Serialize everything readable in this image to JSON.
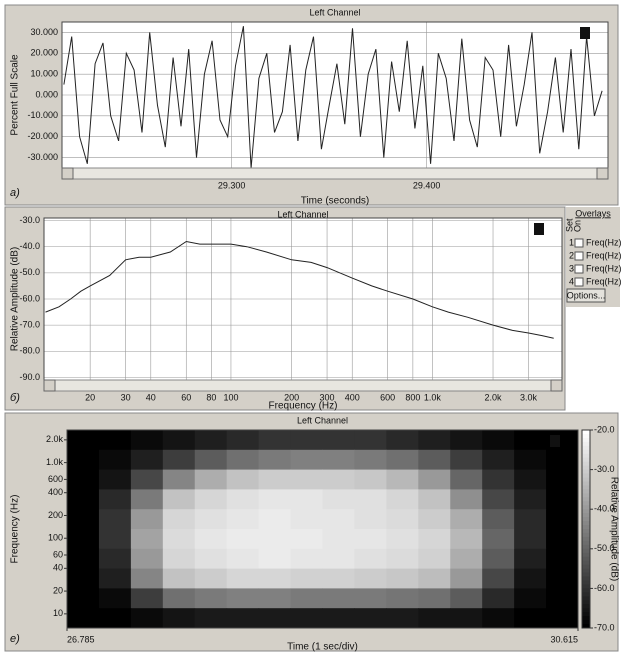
{
  "chart_data": [
    {
      "type": "line",
      "title": "Left Channel",
      "ylabel": "Percent Full Scale",
      "xlabel": "Time (seconds)",
      "panel_label": "a)",
      "color": "#222222",
      "grid": true,
      "xlim": [
        29.213,
        29.493
      ],
      "ylim": [
        -35,
        35
      ],
      "xticks": [
        {
          "value": 29.3,
          "label": "29.300"
        },
        {
          "value": 29.4,
          "label": "29.400"
        }
      ],
      "yticks": [
        {
          "value": 30,
          "label": "30.000"
        },
        {
          "value": 20,
          "label": "20.000"
        },
        {
          "value": 10,
          "label": "10.000"
        },
        {
          "value": 0,
          "label": "0.000"
        },
        {
          "value": -10,
          "label": "-10.000"
        },
        {
          "value": -20,
          "label": "-20.000"
        },
        {
          "value": -30,
          "label": "-30.000"
        }
      ],
      "x": [
        29.214,
        29.218,
        29.222,
        29.226,
        29.23,
        29.234,
        29.238,
        29.242,
        29.246,
        29.25,
        29.254,
        29.258,
        29.262,
        29.266,
        29.27,
        29.274,
        29.278,
        29.282,
        29.286,
        29.29,
        29.294,
        29.298,
        29.302,
        29.306,
        29.31,
        29.314,
        29.318,
        29.322,
        29.326,
        29.33,
        29.334,
        29.338,
        29.342,
        29.346,
        29.35,
        29.354,
        29.358,
        29.362,
        29.366,
        29.37,
        29.374,
        29.378,
        29.382,
        29.386,
        29.39,
        29.394,
        29.398,
        29.402,
        29.406,
        29.41,
        29.414,
        29.418,
        29.422,
        29.426,
        29.43,
        29.434,
        29.438,
        29.442,
        29.446,
        29.45,
        29.454,
        29.458,
        29.462,
        29.466,
        29.47,
        29.474,
        29.478,
        29.482,
        29.486,
        29.49
      ],
      "values": [
        5,
        28,
        -20,
        -33,
        15,
        25,
        -10,
        -22,
        20,
        12,
        -18,
        30,
        -5,
        -25,
        18,
        -15,
        22,
        -30,
        10,
        26,
        -12,
        -20,
        14,
        33,
        -35,
        8,
        20,
        -18,
        -8,
        24,
        -22,
        12,
        28,
        -26,
        -5,
        15,
        -14,
        32,
        -20,
        10,
        22,
        -30,
        16,
        -8,
        26,
        -16,
        14,
        -33,
        20,
        8,
        -22,
        27,
        -12,
        -25,
        18,
        12,
        -20,
        24,
        -15,
        5,
        30,
        -28,
        -8,
        18,
        -18,
        22,
        -26,
        28,
        -10,
        2
      ]
    },
    {
      "type": "line",
      "title": "Left Channel",
      "ylabel": "Relative Amplitude (dB)",
      "xlabel": "Frequency (Hz)",
      "panel_label": "б)",
      "color": "#222222",
      "grid": true,
      "xscale": "log",
      "xlim": [
        11.8,
        4400
      ],
      "ylim": [
        -91,
        -29
      ],
      "xticks": [
        20,
        30,
        40,
        60,
        80,
        100,
        200,
        300,
        400,
        600,
        800,
        {
          "value": 1000,
          "label": "1.0k"
        },
        {
          "value": 2000,
          "label": "2.0k"
        },
        {
          "value": 3000,
          "label": "3.0k"
        }
      ],
      "yticks": [
        {
          "value": -30,
          "label": "-30.0"
        },
        {
          "value": -40,
          "label": "-40.0"
        },
        {
          "value": -50,
          "label": "-50.0"
        },
        {
          "value": -60,
          "label": "-60.0"
        },
        {
          "value": -70,
          "label": "-70.0"
        },
        {
          "value": -80,
          "label": "-80.0"
        },
        {
          "value": -90,
          "label": "-90.0"
        }
      ],
      "x": [
        12,
        14,
        16,
        18,
        20,
        25,
        30,
        35,
        40,
        50,
        60,
        70,
        80,
        100,
        120,
        150,
        200,
        250,
        300,
        400,
        500,
        600,
        800,
        1000,
        1200,
        1500,
        2000,
        2500,
        3000,
        3500,
        4000
      ],
      "values": [
        -65,
        -63,
        -60,
        -57,
        -55,
        -51,
        -45,
        -44,
        -44,
        -42,
        -38,
        -39,
        -39,
        -39,
        -40,
        -42,
        -45,
        -46,
        -48,
        -52,
        -55,
        -57,
        -60,
        -63,
        -65,
        -67,
        -70,
        -72,
        -73,
        -74,
        -75
      ],
      "overlays": {
        "title": "Overlays",
        "headers": [
          "Set",
          "On"
        ],
        "rows": [
          {
            "set": "1",
            "label": "Freq(Hz)"
          },
          {
            "set": "2",
            "label": "Freq(Hz)"
          },
          {
            "set": "3",
            "label": "Freq(Hz)"
          },
          {
            "set": "4",
            "label": "Freq(Hz)"
          }
        ],
        "button": "Options..."
      }
    },
    {
      "type": "heatmap",
      "title": "Left Channel",
      "ylabel": "Frequency (Hz)",
      "xlabel": "Time (1 sec/div)",
      "panel_label": "e)",
      "colorbar_label": "Relative Amplitude (dB)",
      "yscale": "log",
      "xlim": [
        26.785,
        30.615
      ],
      "ylim": [
        6.5,
        2700
      ],
      "zlim": [
        -70,
        -20
      ],
      "xticks": [
        {
          "value": 26.785,
          "label": "26.785"
        },
        {
          "value": 30.615,
          "label": "30.615"
        }
      ],
      "yticks": [
        10,
        20,
        40,
        60,
        100,
        200,
        400,
        600,
        {
          "value": 1000,
          "label": "1.0k"
        },
        {
          "value": 2000,
          "label": "2.0k"
        }
      ],
      "zticks": [
        {
          "value": -20,
          "label": "-20.0"
        },
        {
          "value": -30,
          "label": "-30.0"
        },
        {
          "value": -40,
          "label": "-40.0"
        },
        {
          "value": -50,
          "label": "-50.0"
        },
        {
          "value": -60,
          "label": "-60.0"
        },
        {
          "value": -70,
          "label": "-70.0"
        }
      ],
      "z": [
        [
          -70,
          -70,
          -68,
          -66,
          -64,
          -62,
          -60,
          -60,
          -60,
          -60,
          -62,
          -64,
          -66,
          -68,
          -70,
          -70
        ],
        [
          -70,
          -68,
          -64,
          -58,
          -52,
          -48,
          -46,
          -45,
          -45,
          -46,
          -48,
          -52,
          -58,
          -64,
          -68,
          -70
        ],
        [
          -70,
          -66,
          -56,
          -44,
          -36,
          -32,
          -30,
          -30,
          -30,
          -31,
          -34,
          -40,
          -50,
          -60,
          -66,
          -70
        ],
        [
          -70,
          -62,
          -46,
          -32,
          -28,
          -26,
          -25,
          -25,
          -26,
          -26,
          -28,
          -32,
          -42,
          -56,
          -64,
          -70
        ],
        [
          -70,
          -60,
          -40,
          -28,
          -26,
          -25,
          -24,
          -25,
          -25,
          -26,
          -27,
          -30,
          -36,
          -52,
          -62,
          -70
        ],
        [
          -70,
          -60,
          -38,
          -27,
          -25,
          -24,
          -24,
          -24,
          -25,
          -25,
          -26,
          -28,
          -34,
          -50,
          -62,
          -70
        ],
        [
          -70,
          -62,
          -40,
          -28,
          -26,
          -25,
          -24,
          -25,
          -25,
          -26,
          -27,
          -29,
          -36,
          -52,
          -64,
          -70
        ],
        [
          -70,
          -64,
          -44,
          -32,
          -30,
          -28,
          -28,
          -29,
          -29,
          -30,
          -31,
          -33,
          -40,
          -56,
          -66,
          -70
        ],
        [
          -70,
          -68,
          -58,
          -48,
          -46,
          -45,
          -45,
          -46,
          -46,
          -46,
          -47,
          -48,
          -52,
          -62,
          -68,
          -70
        ],
        [
          -70,
          -70,
          -68,
          -66,
          -65,
          -65,
          -65,
          -65,
          -65,
          -65,
          -65,
          -66,
          -66,
          -68,
          -70,
          -70
        ]
      ]
    }
  ]
}
